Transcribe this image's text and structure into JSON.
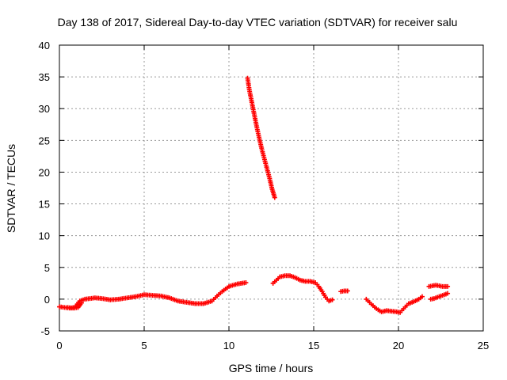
{
  "chart_data": {
    "type": "scatter",
    "title": "Day 138 of 2017, Sidereal Day-to-day VTEC variation (SDTVAR) for receiver salu",
    "xlabel": "GPS time / hours",
    "ylabel": "SDTVAR / TECUs",
    "xlim": [
      0,
      25
    ],
    "ylim": [
      -5,
      40
    ],
    "xticks": [
      0,
      5,
      10,
      15,
      20,
      25
    ],
    "yticks": [
      -5,
      0,
      5,
      10,
      15,
      20,
      25,
      30,
      35,
      40
    ],
    "grid": true,
    "marker": "plus",
    "series_color": "#ff0000",
    "segments": [
      {
        "name": "early-morning",
        "x": [
          0.0,
          0.3,
          0.6,
          0.9,
          1.2,
          1.5,
          1.8,
          2.1,
          2.5,
          3.0,
          3.5,
          4.0,
          4.5,
          5.0,
          5.5,
          6.0,
          6.5,
          7.0,
          7.5,
          8.0,
          8.5,
          9.0,
          9.3,
          9.6,
          10.0,
          10.5,
          11.0
        ],
        "y": [
          -1.2,
          -1.3,
          -1.4,
          -1.3,
          -0.3,
          0.0,
          0.1,
          0.2,
          0.1,
          -0.1,
          0.0,
          0.2,
          0.4,
          0.7,
          0.6,
          0.5,
          0.2,
          -0.3,
          -0.5,
          -0.7,
          -0.7,
          -0.3,
          0.5,
          1.2,
          2.0,
          2.4,
          2.6
        ]
      },
      {
        "name": "early-dip",
        "x": [
          0.5,
          0.7,
          0.9,
          1.1,
          1.3
        ],
        "y": [
          -1.3,
          -1.4,
          -1.4,
          -1.3,
          -0.6
        ]
      },
      {
        "name": "spike",
        "x": [
          11.1,
          11.2,
          11.35,
          11.5,
          11.65,
          11.8,
          11.95,
          12.1,
          12.25,
          12.4,
          12.55,
          12.7
        ],
        "y": [
          34.8,
          33.0,
          31.0,
          29.0,
          27.0,
          25.2,
          23.5,
          22.0,
          20.5,
          19.0,
          17.3,
          16.0
        ]
      },
      {
        "name": "midday",
        "x": [
          12.6,
          12.8,
          13.0,
          13.3,
          13.6,
          13.9,
          14.2,
          14.5,
          14.8,
          15.1,
          15.3,
          15.5,
          15.7,
          15.9,
          16.1
        ],
        "y": [
          2.5,
          3.0,
          3.5,
          3.7,
          3.7,
          3.4,
          3.0,
          2.8,
          2.8,
          2.6,
          2.0,
          1.2,
          0.3,
          -0.3,
          -0.1
        ]
      },
      {
        "name": "late-afternoon",
        "x": [
          16.6,
          16.8,
          17.0
        ],
        "y": [
          1.2,
          1.3,
          1.3
        ]
      },
      {
        "name": "evening",
        "x": [
          18.1,
          18.4,
          18.7,
          19.0,
          19.3,
          19.6,
          19.9,
          20.1,
          20.3,
          20.6,
          20.9,
          21.2,
          21.4
        ],
        "y": [
          0.0,
          -0.8,
          -1.5,
          -2.0,
          -1.8,
          -1.9,
          -2.0,
          -2.1,
          -1.5,
          -0.7,
          -0.4,
          0.0,
          0.4
        ]
      },
      {
        "name": "late-upper",
        "x": [
          21.8,
          22.0,
          22.2,
          22.4,
          22.6,
          22.8,
          22.9
        ],
        "y": [
          2.0,
          2.1,
          2.2,
          2.1,
          2.0,
          2.0,
          2.0
        ]
      },
      {
        "name": "late-lower",
        "x": [
          21.9,
          22.1,
          22.3,
          22.5,
          22.7,
          22.9
        ],
        "y": [
          0.0,
          0.1,
          0.3,
          0.5,
          0.7,
          0.9
        ]
      }
    ]
  }
}
